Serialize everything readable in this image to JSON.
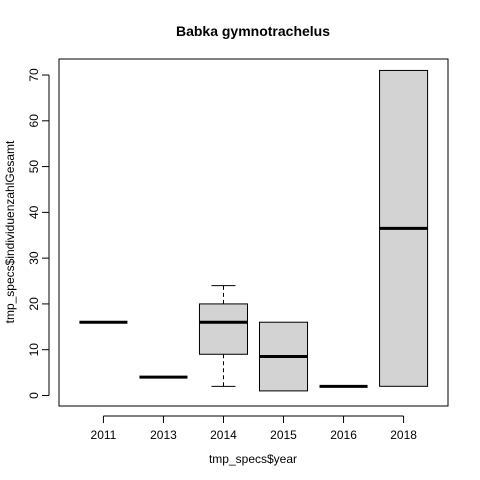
{
  "chart_data": {
    "type": "box",
    "title": "Babka gymnotrachelus",
    "xlabel": "tmp_specs$year",
    "ylabel": "tmp_specs$individuenzahlGesamt",
    "ylim": [
      -2.3,
      73.5
    ],
    "yticks": [
      0,
      10,
      20,
      30,
      40,
      50,
      60,
      70
    ],
    "categories": [
      "2011",
      "2013",
      "2014",
      "2015",
      "2016",
      "2018"
    ],
    "boxes": [
      {
        "category": "2011",
        "min": 16,
        "q1": 16,
        "median": 16,
        "q3": 16,
        "max": 16
      },
      {
        "category": "2013",
        "min": 4,
        "q1": 4,
        "median": 4,
        "q3": 4,
        "max": 4
      },
      {
        "category": "2014",
        "min": 2,
        "q1": 9,
        "median": 16,
        "q3": 20,
        "max": 24
      },
      {
        "category": "2015",
        "min": 1,
        "q1": 1,
        "median": 8.5,
        "q3": 16,
        "max": 16
      },
      {
        "category": "2016",
        "min": 2,
        "q1": 2,
        "median": 2,
        "q3": 2,
        "max": 2
      },
      {
        "category": "2018",
        "min": 2,
        "q1": 2,
        "median": 36.5,
        "q3": 71,
        "max": 71
      }
    ],
    "box_fill": "#d3d3d3",
    "grid": false,
    "legend": "none"
  }
}
